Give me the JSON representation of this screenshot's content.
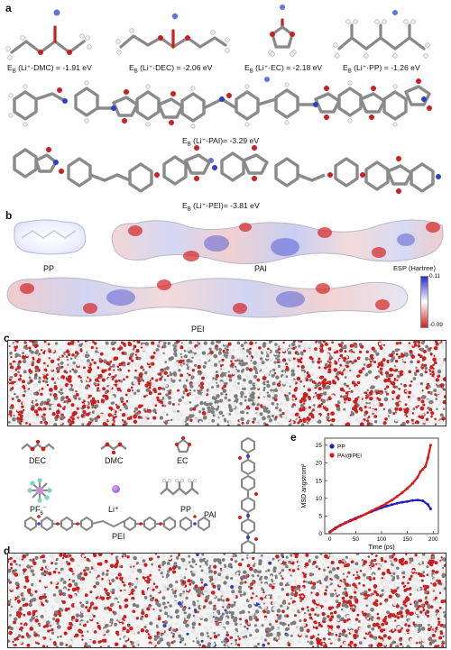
{
  "panels": {
    "a": "a",
    "b": "b",
    "c": "c",
    "d": "d",
    "e": "e"
  },
  "panel_a": {
    "energies": [
      {
        "prefix": "E",
        "sub": "B",
        "text": " (Li⁺·DMC) = -1.91 eV"
      },
      {
        "prefix": "E",
        "sub": "B",
        "text": " (Li⁺·DEC) = -2.06 eV"
      },
      {
        "prefix": "E",
        "sub": "B",
        "text": " (Li⁺·EC) = -2.18 eV"
      },
      {
        "prefix": "E",
        "sub": "B",
        "text": " (Li⁺·PP) = -1.26 eV"
      },
      {
        "prefix": "E",
        "sub": "B",
        "text": " (Li⁺·PAI)= -3.29 eV"
      },
      {
        "prefix": "E",
        "sub": "B",
        "text": " (Li⁺·PEI)= -3.81 eV"
      }
    ]
  },
  "panel_b": {
    "labels": {
      "pp": "PP",
      "pai": "PAI",
      "pei": "PEI"
    },
    "esp_title": "ESP (Hartree)",
    "esp_max": "0.11",
    "esp_min": "-0.09"
  },
  "panel_c_legend": {
    "dec": "DEC",
    "dmc": "DMC",
    "ec": "EC",
    "pf6": "PF",
    "pf6_sub": "6",
    "pf6_sup": "−",
    "li": "Li⁺",
    "pp": "PP",
    "pai": "PAI",
    "pei": "PEI"
  },
  "colors": {
    "oxygen": "#cc1f1f",
    "carbon": "#7d7d7d",
    "hydrogen": "#e8e8e8",
    "nitrogen": "#2e3fc9",
    "lithium": "#3b4fd6",
    "esp_pos": "#2b2bd0",
    "esp_neg": "#d02020",
    "series_pp": "#1f1fb8",
    "series_paipei": "#e01414"
  },
  "chart_data": {
    "type": "line",
    "xlabel": "Time (ps)",
    "ylabel": "MSD angstrom²",
    "xlim": [
      -10,
      210
    ],
    "ylim": [
      0,
      27
    ],
    "xticks": [
      0,
      50,
      100,
      150,
      200
    ],
    "yticks": [
      0,
      5,
      10,
      15,
      20,
      25
    ],
    "legend_position": "top-left",
    "series": [
      {
        "name": "PP",
        "color": "#1f1fb8",
        "x": [
          0,
          10,
          20,
          30,
          40,
          50,
          60,
          70,
          80,
          90,
          100,
          110,
          120,
          130,
          140,
          150,
          160,
          170,
          180,
          190,
          195
        ],
        "y": [
          0.5,
          1.6,
          2.4,
          3.1,
          3.8,
          4.4,
          5.0,
          5.6,
          6.2,
          6.8,
          7.3,
          7.8,
          8.2,
          8.6,
          8.9,
          9.1,
          9.4,
          9.5,
          9.3,
          8.2,
          7.0
        ]
      },
      {
        "name": "PAI@PEI",
        "color": "#e01414",
        "x": [
          0,
          10,
          20,
          30,
          40,
          50,
          60,
          70,
          80,
          90,
          100,
          110,
          120,
          130,
          140,
          150,
          160,
          170,
          175,
          180,
          185,
          190,
          195
        ],
        "y": [
          0.4,
          1.4,
          2.3,
          3.0,
          3.6,
          4.2,
          4.9,
          5.6,
          6.4,
          7.1,
          7.8,
          8.6,
          9.5,
          10.5,
          11.6,
          12.8,
          14.2,
          16.0,
          17.5,
          18.2,
          19.0,
          21.5,
          25.0
        ]
      }
    ]
  }
}
